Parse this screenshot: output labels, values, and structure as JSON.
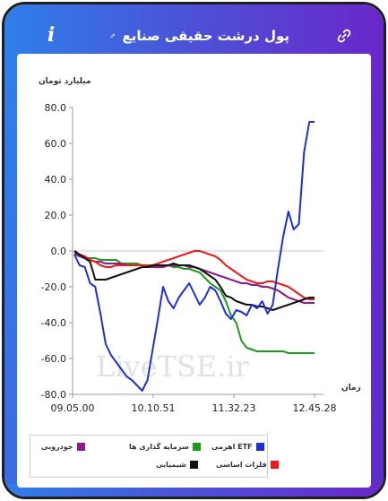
{
  "header": {
    "title": "پول درشت حقیقی صنایع",
    "info_icon": "info-icon",
    "edit_icon": "pencil-icon",
    "link_icon": "link-icon"
  },
  "colors": {
    "header_start": "#2f7fe9",
    "header_end": "#6a27c9",
    "etf": "#1f2fd6",
    "investment": "#1e9a1e",
    "auto": "#8e1a8e",
    "metals": "#ee1b1b",
    "chemical": "#111111"
  },
  "watermark": "LiveTSE.ir",
  "chart_data": {
    "type": "line",
    "ylabel": "میلیارد تومان",
    "xlabel": "زمان",
    "ylim": [
      -80,
      80
    ],
    "yticks": [
      "80.0",
      "60.0",
      "40.0",
      "20.0",
      "0.0",
      "-20.0",
      "-40.0",
      "-60.0",
      "-80.0"
    ],
    "x_tick_labels": [
      "09.05.00",
      "10.10.51",
      "11.32.23",
      "12.45.28"
    ],
    "grid": "zero-line only",
    "legend": "bottom",
    "series": [
      {
        "name": "ETF اهرمی",
        "color": "#1f2fd6",
        "values": [
          -2,
          -8,
          -9,
          -18,
          -20,
          -35,
          -52,
          -58,
          -62,
          -66,
          -70,
          -72,
          -75,
          -78,
          -72,
          -55,
          -38,
          -20,
          -28,
          -32,
          -26,
          -22,
          -18,
          -24,
          -30,
          -26,
          -20,
          -22,
          -28,
          -35,
          -38,
          -33,
          -34,
          -36,
          -30,
          -32,
          -28,
          -35,
          -30,
          -10,
          8,
          22,
          12,
          15,
          55,
          72,
          72
        ]
      },
      {
        "name": "سرمایه گذاری ها",
        "color": "#1e9a1e",
        "values": [
          -2,
          -3,
          -4,
          -4,
          -4,
          -5,
          -5,
          -5,
          -5,
          -7,
          -7,
          -7,
          -7,
          -8,
          -8,
          -8,
          -9,
          -9,
          -8,
          -9,
          -9,
          -10,
          -10,
          -11,
          -12,
          -15,
          -18,
          -20,
          -22,
          -28,
          -36,
          -40,
          -50,
          -54,
          -55,
          -56,
          -56,
          -56,
          -56,
          -56,
          -56,
          -57,
          -57,
          -57,
          -57,
          -57,
          -57
        ]
      },
      {
        "name": "خودرویی",
        "color": "#8e1a8e",
        "values": [
          -1,
          -3,
          -4,
          -5,
          -6,
          -6,
          -7,
          -7,
          -7,
          -7,
          -8,
          -8,
          -8,
          -8,
          -9,
          -9,
          -9,
          -9,
          -8,
          -8,
          -8,
          -8,
          -9,
          -9,
          -10,
          -11,
          -12,
          -13,
          -14,
          -15,
          -16,
          -17,
          -18,
          -18,
          -19,
          -19,
          -20,
          -20,
          -21,
          -22,
          -24,
          -26,
          -27,
          -28,
          -29,
          -29,
          -29
        ]
      },
      {
        "name": "فلزات اساسی",
        "color": "#ee1b1b",
        "values": [
          0,
          -2,
          -3,
          -5,
          -6,
          -8,
          -9,
          -9,
          -8,
          -8,
          -8,
          -8,
          -8,
          -8,
          -8,
          -8,
          -7,
          -6,
          -5,
          -4,
          -3,
          -2,
          -1,
          0,
          0,
          -1,
          -2,
          -3,
          -5,
          -8,
          -10,
          -12,
          -14,
          -16,
          -17,
          -18,
          -18,
          -17,
          -17,
          -18,
          -19,
          -20,
          -22,
          -24,
          -26,
          -27,
          -27
        ]
      },
      {
        "name": "شیمیایی",
        "color": "#111111",
        "values": [
          0,
          -2,
          -4,
          -6,
          -16,
          -16,
          -16,
          -15,
          -14,
          -13,
          -12,
          -11,
          -10,
          -9,
          -9,
          -8,
          -8,
          -8,
          -8,
          -7,
          -8,
          -8,
          -8,
          -9,
          -10,
          -12,
          -14,
          -16,
          -20,
          -25,
          -26,
          -28,
          -29,
          -30,
          -30,
          -31,
          -31,
          -32,
          -33,
          -32,
          -31,
          -30,
          -29,
          -28,
          -27,
          -26,
          -26
        ]
      }
    ]
  }
}
